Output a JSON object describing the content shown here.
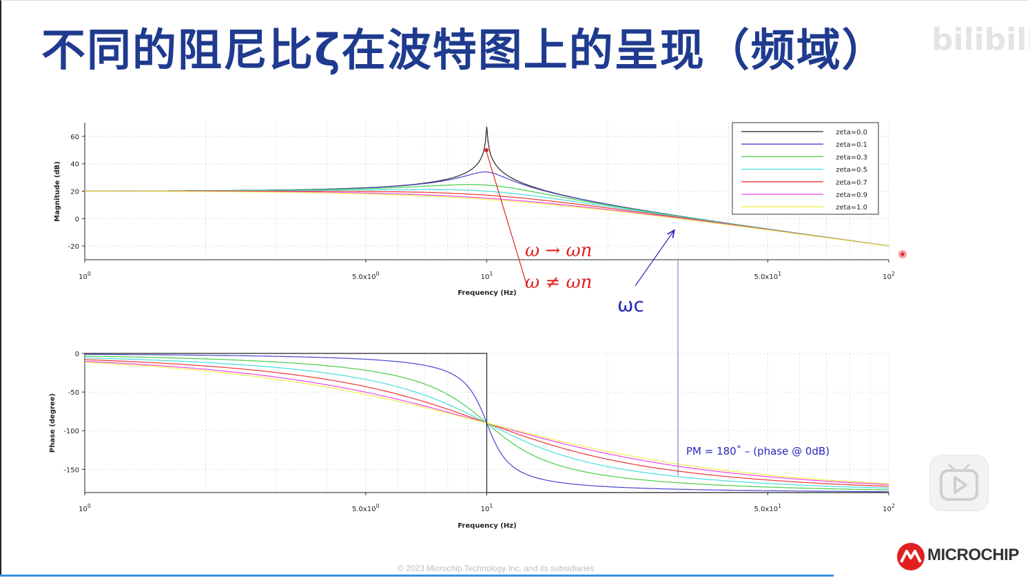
{
  "slide": {
    "title": "不同的阻尼比ζ在波特图上的呈现（频域）",
    "watermark": "bilibili",
    "footer": "© 2023 Microchip Technology Inc. and its subsidiaries",
    "brand": "MICROCHIP"
  },
  "annotations": {
    "omega_to_wn": "ω → ωn",
    "omega_ne_wn": "ω ≠ ωn",
    "omega_c": "ωc",
    "pm_text": "PM = 180˚ – (phase @ 0dB)",
    "red_color": "#e02020",
    "blue_color": "#2626b8"
  },
  "chart_data": [
    {
      "type": "line",
      "name": "magnitude",
      "xlabel": "Frequency (Hz)",
      "ylabel": "Magnitude (dB)",
      "xscale": "log",
      "xlim": [
        1,
        100
      ],
      "ylim": [
        -30,
        70
      ],
      "yticks": [
        "60",
        "40",
        "20",
        "0",
        "-20"
      ],
      "xticks": [
        "10^0",
        "5.0x10^0",
        "10^1",
        "5.0x10^1",
        "10^2"
      ],
      "grid": true,
      "legend_position": "top-right",
      "model": {
        "dc_gain": 10,
        "fn": 10
      },
      "series": [
        {
          "name": "zeta=0.0",
          "zeta": 0.0,
          "color": "#222222"
        },
        {
          "name": "zeta=0.1",
          "zeta": 0.1,
          "color": "#4444cc"
        },
        {
          "name": "zeta=0.3",
          "zeta": 0.3,
          "color": "#44cc44"
        },
        {
          "name": "zeta=0.5",
          "zeta": 0.5,
          "color": "#44dddd"
        },
        {
          "name": "zeta=0.7",
          "zeta": 0.7,
          "color": "#ee3333"
        },
        {
          "name": "zeta=0.9",
          "zeta": 0.9,
          "color": "#ee44ee"
        },
        {
          "name": "zeta=1.0",
          "zeta": 1.0,
          "color": "#eeee44"
        }
      ]
    },
    {
      "type": "line",
      "name": "phase",
      "xlabel": "Frequency (Hz)",
      "ylabel": "Phase (degree)",
      "xscale": "log",
      "xlim": [
        1,
        100
      ],
      "ylim": [
        -180,
        0
      ],
      "yticks": [
        "0",
        "-50",
        "-100",
        "-150"
      ],
      "xticks": [
        "10^0",
        "5.0x10^0",
        "10^1",
        "5.0x10^1",
        "10^2"
      ],
      "grid": true,
      "series_ref": "magnitude"
    }
  ]
}
